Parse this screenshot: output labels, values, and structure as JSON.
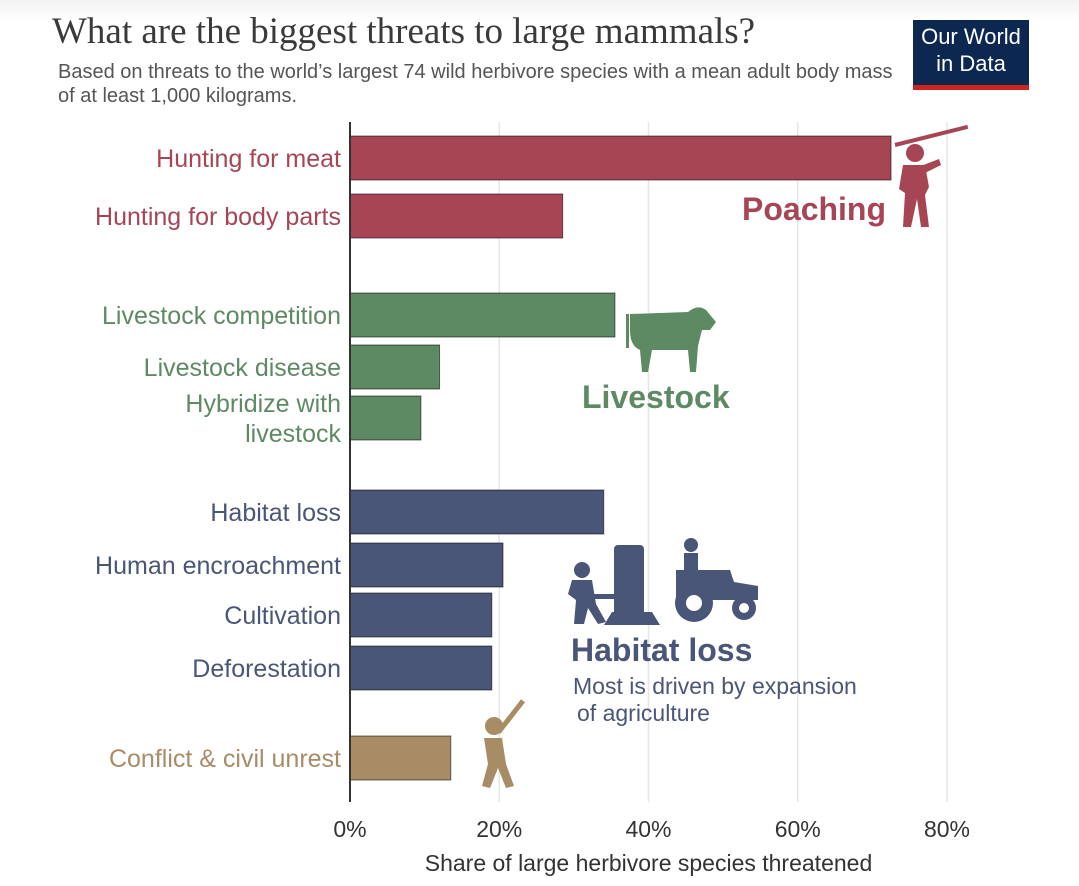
{
  "header": {
    "title": "What are the biggest threats to large mammals?",
    "subtitle": "Based on threats to the world’s largest 74 wild herbivore species with a mean adult body mass of at least 1,000 kilograms.",
    "logo_line1": "Our World",
    "logo_line2": "in Data"
  },
  "colors": {
    "poaching": "#a64655",
    "livestock": "#5e8a63",
    "habitat": "#4a5678",
    "conflict": "#a88c66",
    "grid": "#e6e6e6",
    "axis": "#333333"
  },
  "chart_data": {
    "type": "bar",
    "orientation": "horizontal",
    "title": "What are the biggest threats to large mammals?",
    "xlabel": "Share of large herbivore species threatened",
    "xlim": [
      0,
      80
    ],
    "xticks": [
      0,
      20,
      40,
      60,
      80
    ],
    "xtick_labels": [
      "0%",
      "20%",
      "40%",
      "60%",
      "80%"
    ],
    "grid": true,
    "groups": [
      {
        "name": "Poaching",
        "color": "#a64655",
        "annotation": "Poaching",
        "items": [
          {
            "label": [
              "Hunting for meat"
            ],
            "value": 72.5
          },
          {
            "label": [
              "Hunting for body parts"
            ],
            "value": 28.5
          }
        ]
      },
      {
        "name": "Livestock",
        "color": "#5e8a63",
        "annotation": "Livestock",
        "items": [
          {
            "label": [
              "Livestock competition"
            ],
            "value": 35.5
          },
          {
            "label": [
              "Livestock disease"
            ],
            "value": 12
          },
          {
            "label": [
              "Hybridize with",
              "livestock"
            ],
            "value": 9.5
          }
        ]
      },
      {
        "name": "Habitat loss",
        "color": "#4a5678",
        "annotation": "Habitat loss",
        "note": [
          "Most is driven by expansion",
          "of agriculture"
        ],
        "items": [
          {
            "label": [
              "Habitat loss"
            ],
            "value": 34
          },
          {
            "label": [
              "Human encroachment"
            ],
            "value": 20.5
          },
          {
            "label": [
              "Cultivation"
            ],
            "value": 19
          },
          {
            "label": [
              "Deforestation"
            ],
            "value": 19
          }
        ]
      },
      {
        "name": "Conflict",
        "color": "#a88c66",
        "items": [
          {
            "label": [
              "Conflict & civil unrest"
            ],
            "value": 13.5
          }
        ]
      }
    ]
  }
}
